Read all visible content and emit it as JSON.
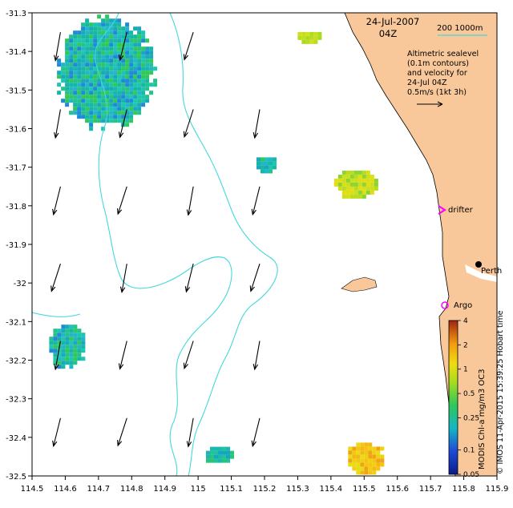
{
  "map": {
    "date": "24-Jul-2007",
    "time": "04Z",
    "scale_label": "200  1000m",
    "legend_lines": [
      "Altimetric sealevel",
      "(0.1m contours)",
      "and velocity for",
      "24-Jul 04Z",
      "0.5m/s (1kt 3h)"
    ],
    "colorbar_title": "MODIS Chl-a mg/m3 OC3",
    "colorbar_ticks": [
      "4",
      "2",
      "1",
      "0.5",
      "0.25",
      "0.1",
      "0.05"
    ],
    "credit": "© IMOS 11-Apr-2015 15:39:25 Hobart time",
    "x_ticks": [
      "114.5",
      "114.6",
      "114.7",
      "114.8",
      "114.9",
      "115",
      "115.1",
      "115.2",
      "115.3",
      "115.4",
      "115.5",
      "115.6",
      "115.7",
      "115.8",
      "115.9"
    ],
    "y_ticks": [
      "-31.3",
      "-31.4",
      "-31.5",
      "-31.6",
      "-31.7",
      "-31.8",
      "-31.9",
      "-32",
      "-32.1",
      "-32.2",
      "-32.3",
      "-32.4",
      "-32.5"
    ],
    "places": {
      "perth": "Perth",
      "drifter": "drifter",
      "argo": "Argo"
    },
    "colors": {
      "land": "#f8c89a",
      "contour": "#44d8dc",
      "drifter_marker": "#ff00ff",
      "argo_marker": "#ff00ff"
    }
  },
  "chart_data": {
    "type": "heatmap",
    "x_range": [
      114.5,
      115.9
    ],
    "y_range": [
      -32.5,
      -31.3
    ],
    "colorbar_range": [
      0.05,
      4
    ],
    "colorbar_scale": "log",
    "chl_patches": [
      {
        "lon": 114.72,
        "lat": -31.45,
        "level": "0.15-0.3"
      },
      {
        "lon": 115.33,
        "lat": -31.36,
        "level": "0.5-0.8"
      },
      {
        "lon": 115.2,
        "lat": -31.69,
        "level": "0.15-0.3"
      },
      {
        "lon": 115.47,
        "lat": -31.74,
        "level": "0.4-0.6"
      },
      {
        "lon": 114.6,
        "lat": -32.16,
        "level": "0.15-0.3"
      },
      {
        "lon": 115.06,
        "lat": -32.44,
        "level": "0.2-0.3"
      },
      {
        "lon": 115.5,
        "lat": -32.45,
        "level": "0.6-1.5"
      }
    ],
    "velocity_arrows": [
      {
        "lon": 114.6,
        "lat": -31.4
      },
      {
        "lon": 114.8,
        "lat": -31.4
      },
      {
        "lon": 115.0,
        "lat": -31.4
      },
      {
        "lon": 114.6,
        "lat": -31.6
      },
      {
        "lon": 114.8,
        "lat": -31.6
      },
      {
        "lon": 115.0,
        "lat": -31.6
      },
      {
        "lon": 115.2,
        "lat": -31.6
      },
      {
        "lon": 114.6,
        "lat": -31.8
      },
      {
        "lon": 114.8,
        "lat": -31.8
      },
      {
        "lon": 115.0,
        "lat": -31.8
      },
      {
        "lon": 115.2,
        "lat": -31.8
      },
      {
        "lon": 114.6,
        "lat": -32.0
      },
      {
        "lon": 114.8,
        "lat": -32.0
      },
      {
        "lon": 115.0,
        "lat": -32.0
      },
      {
        "lon": 115.2,
        "lat": -32.0
      },
      {
        "lon": 114.6,
        "lat": -32.2
      },
      {
        "lon": 114.8,
        "lat": -32.2
      },
      {
        "lon": 115.0,
        "lat": -32.2
      },
      {
        "lon": 115.2,
        "lat": -32.2
      },
      {
        "lon": 114.6,
        "lat": -32.4
      },
      {
        "lon": 114.8,
        "lat": -32.4
      },
      {
        "lon": 115.0,
        "lat": -32.4
      },
      {
        "lon": 115.2,
        "lat": -32.4
      }
    ]
  }
}
